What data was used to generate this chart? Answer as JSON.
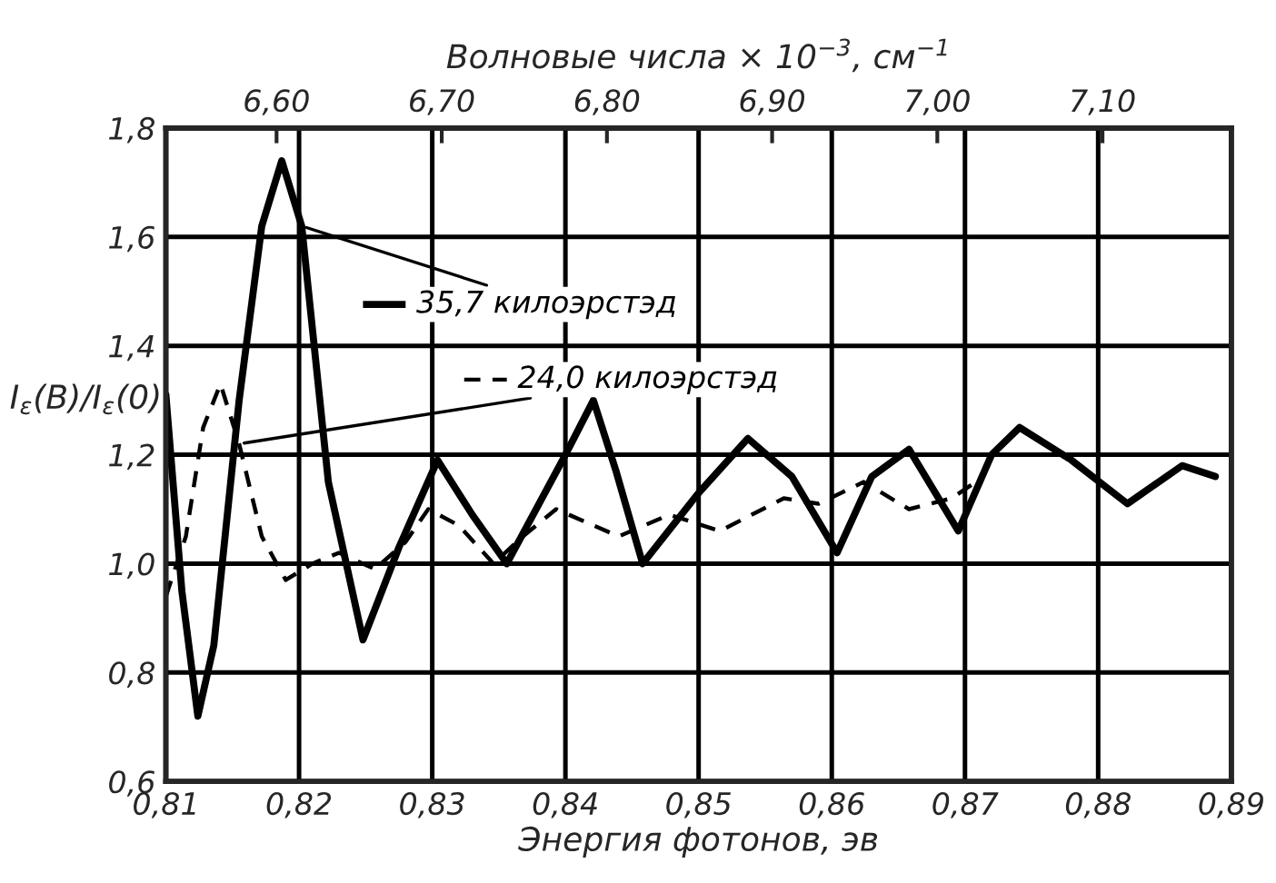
{
  "chart_data": {
    "type": "line",
    "xlabel": "Энергия фотонов, эв",
    "ylabel": "I$_{ε}$(B)/I$_{ε}$(0)",
    "x2label": "Волновые числа × 10$^{−3}$, см$^{−1}$",
    "xlim": [
      0.81,
      0.89
    ],
    "xticks": [
      {
        "value": 0.81,
        "label": "0,81"
      },
      {
        "value": 0.82,
        "label": "0,82"
      },
      {
        "value": 0.83,
        "label": "0,83"
      },
      {
        "value": 0.84,
        "label": "0,84"
      },
      {
        "value": 0.85,
        "label": "0,85"
      },
      {
        "value": 0.86,
        "label": "0,86"
      },
      {
        "value": 0.87,
        "label": "0,87"
      },
      {
        "value": 0.88,
        "label": "0,88"
      },
      {
        "value": 0.89,
        "label": "0,89"
      }
    ],
    "x2lim": [
      6.533,
      7.178
    ],
    "x2ticks": [
      {
        "value": 6.6,
        "label": "6,60"
      },
      {
        "value": 6.7,
        "label": "6,70"
      },
      {
        "value": 6.8,
        "label": "6,80"
      },
      {
        "value": 6.9,
        "label": "6,90"
      },
      {
        "value": 7.0,
        "label": "7,00"
      },
      {
        "value": 7.1,
        "label": "7,10"
      }
    ],
    "ylim": [
      0.6,
      1.8
    ],
    "yticks": [
      {
        "value": 0.6,
        "label": "0,6"
      },
      {
        "value": 0.8,
        "label": "0,8"
      },
      {
        "value": 1.0,
        "label": "1,0"
      },
      {
        "value": 1.2,
        "label": "1,2"
      },
      {
        "value": 1.4,
        "label": "1,4"
      },
      {
        "value": 1.6,
        "label": "1,6"
      },
      {
        "value": 1.8,
        "label": "1,8"
      }
    ],
    "grid": true,
    "legend": "top left",
    "marker": "none",
    "series": [
      {
        "name": "35,7 килоэрстэд",
        "color": "#000000",
        "line_style": "solid",
        "x": [
          0.81,
          0.8112,
          0.8124,
          0.8136,
          0.8155,
          0.8172,
          0.8187,
          0.8202,
          0.8222,
          0.8248,
          0.8275,
          0.8304,
          0.833,
          0.8356,
          0.84,
          0.8421,
          0.8438,
          0.8458,
          0.85,
          0.8537,
          0.857,
          0.8604,
          0.863,
          0.8658,
          0.8695,
          0.872,
          0.8741,
          0.878,
          0.8822,
          0.8863,
          0.8888
        ],
        "values": [
          1.31,
          0.95,
          0.72,
          0.85,
          1.3,
          1.62,
          1.74,
          1.62,
          1.15,
          0.86,
          1.03,
          1.19,
          1.09,
          1.0,
          1.2,
          1.3,
          1.17,
          1.0,
          1.13,
          1.23,
          1.16,
          1.02,
          1.16,
          1.21,
          1.06,
          1.2,
          1.25,
          1.19,
          1.11,
          1.18,
          1.16
        ]
      },
      {
        "name": "24,0 килоэрстэд",
        "color": "#000000",
        "line_style": "dashed",
        "x": [
          0.81,
          0.8115,
          0.8128,
          0.8141,
          0.8155,
          0.8172,
          0.819,
          0.821,
          0.823,
          0.8257,
          0.828,
          0.8297,
          0.832,
          0.8346,
          0.8368,
          0.8393,
          0.844,
          0.8478,
          0.8516,
          0.8564,
          0.859,
          0.8624,
          0.8658,
          0.869,
          0.8714
        ],
        "values": [
          0.94,
          1.05,
          1.25,
          1.33,
          1.22,
          1.05,
          0.97,
          1.0,
          1.02,
          0.99,
          1.04,
          1.1,
          1.07,
          1.0,
          1.05,
          1.1,
          1.05,
          1.09,
          1.06,
          1.12,
          1.11,
          1.15,
          1.1,
          1.12,
          1.16
        ]
      }
    ]
  }
}
